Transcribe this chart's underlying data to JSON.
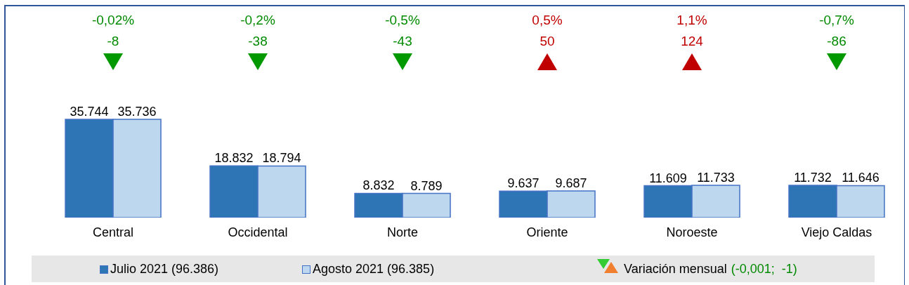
{
  "chart_data": {
    "type": "bar",
    "categories": [
      "Central",
      "Occidental",
      "Norte",
      "Oriente",
      "Noroeste",
      "Viejo Caldas"
    ],
    "series": [
      {
        "name": "Julio 2021 (96.386)",
        "color": "#2e75b6",
        "values": [
          35744,
          18832,
          8832,
          9637,
          11609,
          11732
        ],
        "value_labels": [
          "35.744",
          "18.832",
          "8.832",
          "9.637",
          "11.609",
          "11.732"
        ]
      },
      {
        "name": "Agosto 2021 (96.385)",
        "color": "#bdd7ee",
        "values": [
          35736,
          18794,
          8789,
          9687,
          11733,
          11646
        ],
        "value_labels": [
          "35.736",
          "18.794",
          "8.789",
          "9.687",
          "11.733",
          "11.646"
        ]
      }
    ],
    "legend": "bottom",
    "annotations": [
      "-0,02%",
      "-8",
      "-0,2%",
      "-38",
      "-0,5%",
      "-43",
      "0,5%",
      "50",
      "1,1%",
      "124",
      "-0,7%",
      "-86",
      "Variación mensual",
      "(-0,001;  -1)"
    ]
  }
}
